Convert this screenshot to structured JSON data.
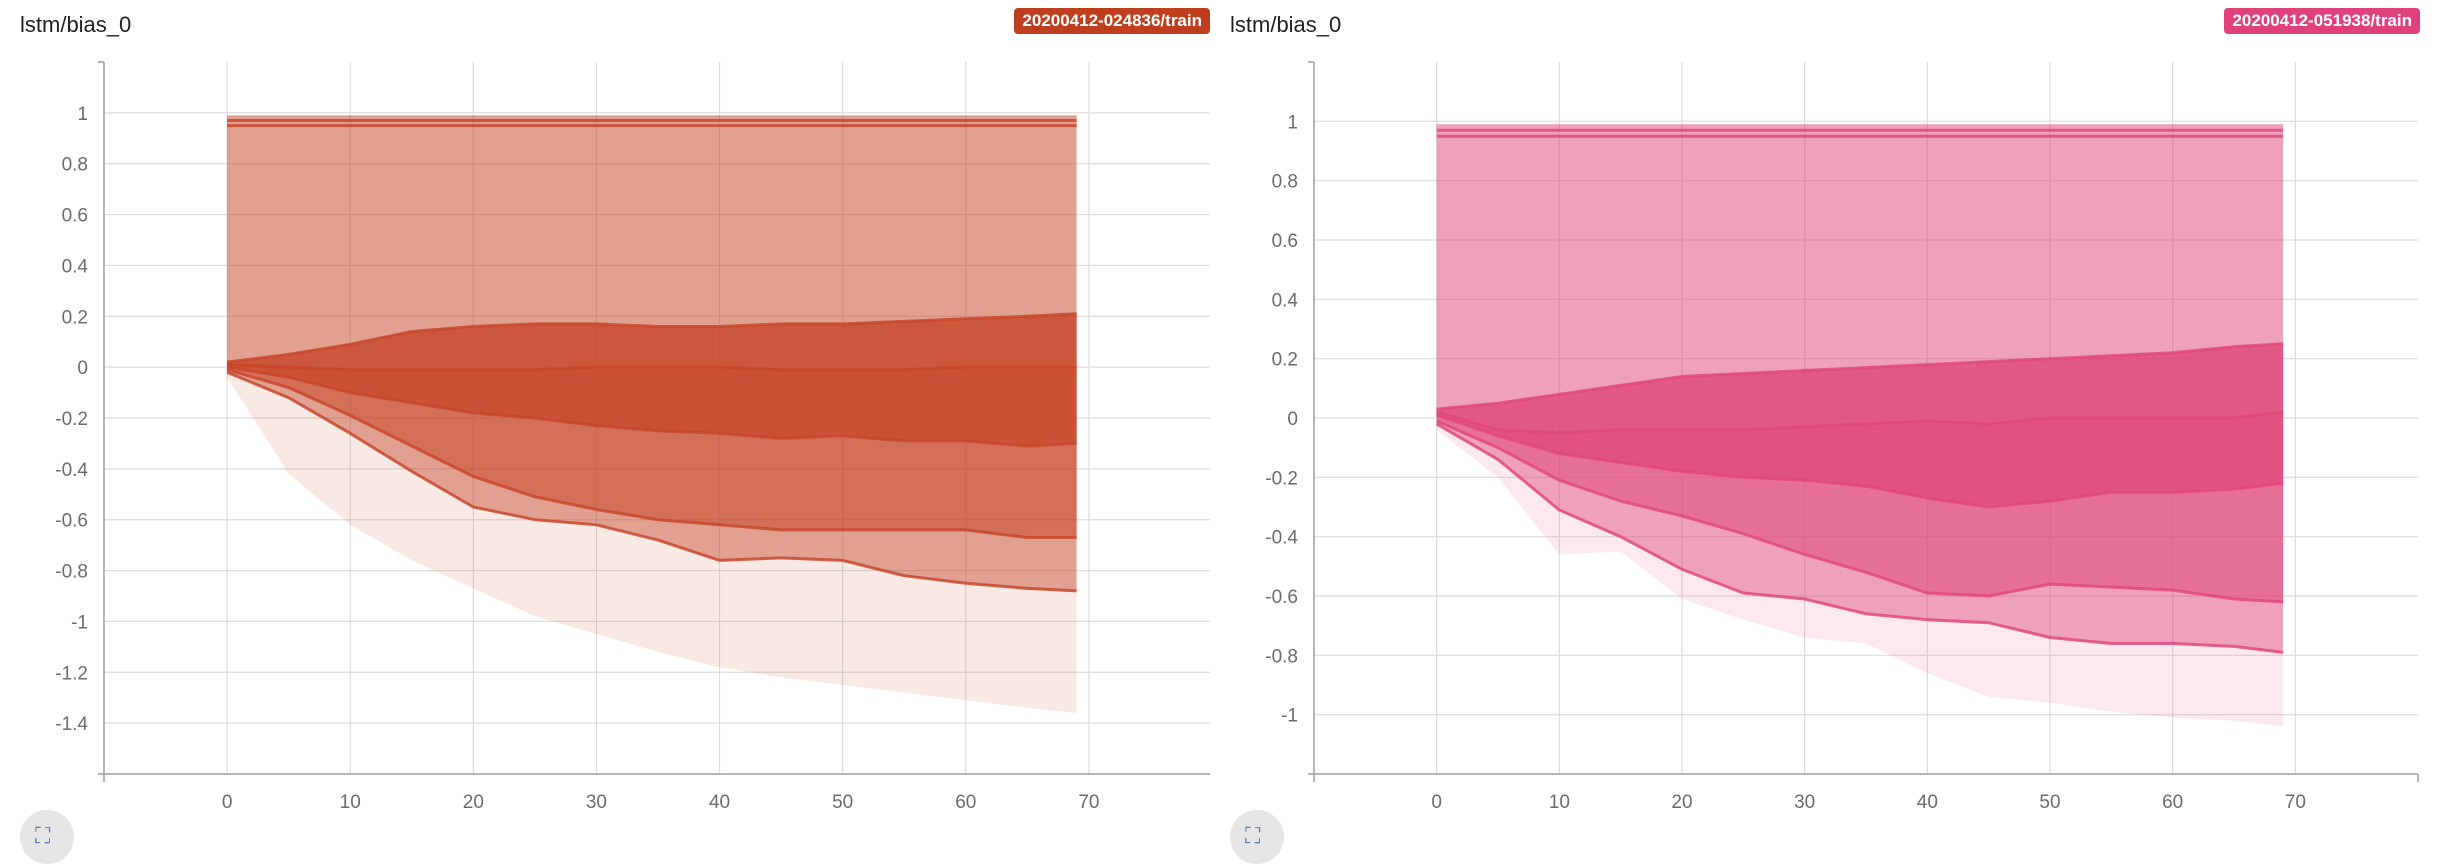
{
  "charts": [
    {
      "title": "lstm/bias_0",
      "run": "20200412-024836/train",
      "color": "#c8472a",
      "badge_color": "#bf3e1e",
      "expand_icon": "expand-icon",
      "chart_data": {
        "type": "area",
        "xlabel": "",
        "ylabel": "",
        "xlim": [
          -10,
          80
        ],
        "ylim": [
          -1.6,
          1.2
        ],
        "x_ticks": [
          "0",
          "10",
          "20",
          "30",
          "40",
          "50",
          "60",
          "70"
        ],
        "y_ticks": [
          "1",
          "0.8",
          "0.6",
          "0.4",
          "0.2",
          "0",
          "-0.2",
          "-0.4",
          "-0.6",
          "-0.8",
          "-1",
          "-1.2",
          "-1.4"
        ],
        "x_tick_values": [
          0,
          10,
          20,
          30,
          40,
          50,
          60,
          70
        ],
        "y_tick_values": [
          1,
          0.8,
          0.6,
          0.4,
          0.2,
          0,
          -0.2,
          -0.4,
          -0.6,
          -0.8,
          -1,
          -1.2,
          -1.4
        ],
        "grid": true,
        "x": [
          0,
          5,
          10,
          15,
          20,
          25,
          30,
          35,
          40,
          45,
          50,
          55,
          60,
          65,
          69
        ],
        "series": [
          {
            "values": [
              0.99,
              0.99,
              0.99,
              0.99,
              0.99,
              0.99,
              0.99,
              0.99,
              0.99,
              0.99,
              0.99,
              0.99,
              0.99,
              0.99,
              0.99
            ]
          },
          {
            "values": [
              0.97,
              0.97,
              0.97,
              0.97,
              0.97,
              0.97,
              0.97,
              0.97,
              0.97,
              0.97,
              0.97,
              0.97,
              0.97,
              0.97,
              0.97
            ]
          },
          {
            "values": [
              0.95,
              0.95,
              0.95,
              0.95,
              0.95,
              0.95,
              0.95,
              0.95,
              0.95,
              0.95,
              0.95,
              0.95,
              0.95,
              0.95,
              0.95
            ]
          },
          {
            "values": [
              0.02,
              0.05,
              0.09,
              0.14,
              0.16,
              0.17,
              0.17,
              0.16,
              0.16,
              0.17,
              0.17,
              0.18,
              0.19,
              0.2,
              0.21
            ]
          },
          {
            "values": [
              0.01,
              0.0,
              -0.01,
              -0.01,
              -0.01,
              -0.01,
              0.0,
              0.0,
              0.0,
              -0.01,
              -0.01,
              -0.01,
              0.0,
              0.0,
              0.0
            ]
          },
          {
            "values": [
              0.0,
              -0.04,
              -0.1,
              -0.14,
              -0.18,
              -0.2,
              -0.23,
              -0.25,
              -0.26,
              -0.28,
              -0.27,
              -0.29,
              -0.29,
              -0.31,
              -0.3
            ]
          },
          {
            "values": [
              -0.01,
              -0.08,
              -0.19,
              -0.31,
              -0.43,
              -0.51,
              -0.56,
              -0.6,
              -0.62,
              -0.64,
              -0.64,
              -0.64,
              -0.64,
              -0.67,
              -0.67
            ]
          },
          {
            "values": [
              -0.02,
              -0.12,
              -0.26,
              -0.41,
              -0.55,
              -0.6,
              -0.62,
              -0.68,
              -0.76,
              -0.75,
              -0.76,
              -0.82,
              -0.85,
              -0.87,
              -0.88
            ]
          },
          {
            "values": [
              -0.04,
              -0.42,
              -0.62,
              -0.76,
              -0.87,
              -0.98,
              -1.05,
              -1.12,
              -1.18,
              -1.22,
              -1.25,
              -1.28,
              -1.31,
              -1.34,
              -1.36
            ]
          }
        ]
      }
    },
    {
      "title": "lstm/bias_0",
      "run": "20200412-051938/train",
      "color": "#e0487c",
      "badge_color": "#e0417c",
      "expand_icon": "expand-icon",
      "chart_data": {
        "type": "area",
        "xlabel": "",
        "ylabel": "",
        "xlim": [
          -10,
          80
        ],
        "ylim": [
          -1.2,
          1.2
        ],
        "x_ticks": [
          "0",
          "10",
          "20",
          "30",
          "40",
          "50",
          "60",
          "70"
        ],
        "y_ticks": [
          "1",
          "0.8",
          "0.6",
          "0.4",
          "0.2",
          "0",
          "-0.2",
          "-0.4",
          "-0.6",
          "-0.8",
          "-1"
        ],
        "x_tick_values": [
          0,
          10,
          20,
          30,
          40,
          50,
          60,
          70
        ],
        "y_tick_values": [
          1,
          0.8,
          0.6,
          0.4,
          0.2,
          0,
          -0.2,
          -0.4,
          -0.6,
          -0.8,
          -1
        ],
        "grid": true,
        "x": [
          0,
          5,
          10,
          15,
          20,
          25,
          30,
          35,
          40,
          45,
          50,
          55,
          60,
          65,
          69
        ],
        "series": [
          {
            "values": [
              0.99,
              0.99,
              0.99,
              0.99,
              0.99,
              0.99,
              0.99,
              0.99,
              0.99,
              0.99,
              0.99,
              0.99,
              0.99,
              0.99,
              0.99
            ]
          },
          {
            "values": [
              0.97,
              0.97,
              0.97,
              0.97,
              0.97,
              0.97,
              0.97,
              0.97,
              0.97,
              0.97,
              0.97,
              0.97,
              0.97,
              0.97,
              0.97
            ]
          },
          {
            "values": [
              0.95,
              0.95,
              0.95,
              0.95,
              0.95,
              0.95,
              0.95,
              0.95,
              0.95,
              0.95,
              0.95,
              0.95,
              0.95,
              0.95,
              0.95
            ]
          },
          {
            "values": [
              0.03,
              0.05,
              0.08,
              0.11,
              0.14,
              0.15,
              0.16,
              0.17,
              0.18,
              0.19,
              0.2,
              0.21,
              0.22,
              0.24,
              0.25
            ]
          },
          {
            "values": [
              0.02,
              -0.04,
              -0.05,
              -0.04,
              -0.04,
              -0.04,
              -0.03,
              -0.02,
              -0.01,
              -0.02,
              0.0,
              0.0,
              0.0,
              0.0,
              0.02
            ]
          },
          {
            "values": [
              0.01,
              -0.06,
              -0.12,
              -0.15,
              -0.18,
              -0.2,
              -0.21,
              -0.23,
              -0.27,
              -0.3,
              -0.28,
              -0.25,
              -0.25,
              -0.24,
              -0.22
            ]
          },
          {
            "values": [
              -0.01,
              -0.1,
              -0.21,
              -0.28,
              -0.33,
              -0.39,
              -0.46,
              -0.52,
              -0.59,
              -0.6,
              -0.56,
              -0.57,
              -0.58,
              -0.61,
              -0.62
            ]
          },
          {
            "values": [
              -0.02,
              -0.14,
              -0.31,
              -0.4,
              -0.51,
              -0.59,
              -0.61,
              -0.66,
              -0.68,
              -0.69,
              -0.74,
              -0.76,
              -0.76,
              -0.77,
              -0.79
            ]
          },
          {
            "values": [
              -0.04,
              -0.2,
              -0.46,
              -0.45,
              -0.61,
              -0.68,
              -0.74,
              -0.76,
              -0.86,
              -0.94,
              -0.96,
              -0.99,
              -1.01,
              -1.02,
              -1.04
            ]
          }
        ]
      }
    }
  ]
}
